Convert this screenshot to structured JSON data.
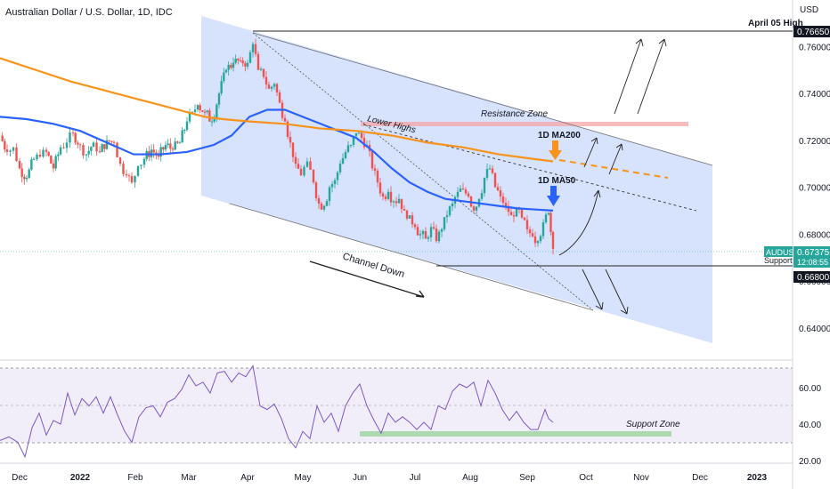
{
  "header": {
    "title": "Australian Dollar / U.S. Dollar, 1D, IDC"
  },
  "axis": {
    "currency": "USD"
  },
  "chart_data": {
    "type": "candlestick",
    "symbol": "AUDUSD",
    "timeframe": "1D",
    "source": "IDC",
    "x_ticks": [
      "Dec",
      "2022",
      "Feb",
      "Mar",
      "Apr",
      "May",
      "Jun",
      "Jul",
      "Aug",
      "Sep",
      "Oct",
      "Nov",
      "Dec",
      "2023"
    ],
    "y_ticks": [
      "0.76000",
      "0.74000",
      "0.72000",
      "0.70000",
      "0.68000",
      "0.66000",
      "0.64000"
    ],
    "y_tick_values": [
      0.76,
      0.74,
      0.72,
      0.7,
      0.68,
      0.66,
      0.64
    ],
    "ylim": [
      0.627,
      0.781
    ],
    "rsi_ticks": [
      "60.00",
      "40.00",
      "20.00"
    ],
    "rsi_tick_values": [
      60,
      40,
      20
    ],
    "rsi_lim": [
      17,
      75
    ],
    "close_path": [
      [
        0,
        0.722
      ],
      [
        8,
        0.715
      ],
      [
        15,
        0.717
      ],
      [
        22,
        0.708
      ],
      [
        30,
        0.704
      ],
      [
        38,
        0.712
      ],
      [
        45,
        0.713
      ],
      [
        52,
        0.715
      ],
      [
        60,
        0.708
      ],
      [
        68,
        0.717
      ],
      [
        75,
        0.719
      ],
      [
        82,
        0.723
      ],
      [
        90,
        0.718
      ],
      [
        97,
        0.714
      ],
      [
        105,
        0.719
      ],
      [
        112,
        0.715
      ],
      [
        120,
        0.72
      ],
      [
        128,
        0.719
      ],
      [
        135,
        0.71
      ],
      [
        142,
        0.705
      ],
      [
        148,
        0.702
      ],
      [
        155,
        0.709
      ],
      [
        162,
        0.712
      ],
      [
        170,
        0.716
      ],
      [
        178,
        0.713
      ],
      [
        186,
        0.718
      ],
      [
        194,
        0.716
      ],
      [
        202,
        0.719
      ],
      [
        210,
        0.728
      ],
      [
        216,
        0.732
      ],
      [
        222,
        0.735
      ],
      [
        230,
        0.732
      ],
      [
        238,
        0.728
      ],
      [
        246,
        0.74
      ],
      [
        254,
        0.75
      ],
      [
        262,
        0.753
      ],
      [
        270,
        0.754
      ],
      [
        278,
        0.753
      ],
      [
        284,
        0.761
      ],
      [
        290,
        0.75
      ],
      [
        296,
        0.747
      ],
      [
        302,
        0.742
      ],
      [
        308,
        0.744
      ],
      [
        314,
        0.736
      ],
      [
        320,
        0.728
      ],
      [
        326,
        0.719
      ],
      [
        332,
        0.71
      ],
      [
        338,
        0.705
      ],
      [
        345,
        0.711
      ],
      [
        352,
        0.702
      ],
      [
        358,
        0.693
      ],
      [
        364,
        0.692
      ],
      [
        370,
        0.7
      ],
      [
        376,
        0.703
      ],
      [
        382,
        0.71
      ],
      [
        388,
        0.715
      ],
      [
        394,
        0.718
      ],
      [
        400,
        0.723
      ],
      [
        406,
        0.721
      ],
      [
        412,
        0.718
      ],
      [
        418,
        0.708
      ],
      [
        424,
        0.702
      ],
      [
        430,
        0.696
      ],
      [
        436,
        0.698
      ],
      [
        442,
        0.694
      ],
      [
        448,
        0.695
      ],
      [
        454,
        0.69
      ],
      [
        460,
        0.688
      ],
      [
        466,
        0.683
      ],
      [
        472,
        0.68
      ],
      [
        478,
        0.678
      ],
      [
        484,
        0.683
      ],
      [
        490,
        0.677
      ],
      [
        496,
        0.682
      ],
      [
        502,
        0.688
      ],
      [
        508,
        0.693
      ],
      [
        514,
        0.698
      ],
      [
        520,
        0.699
      ],
      [
        526,
        0.696
      ],
      [
        532,
        0.69
      ],
      [
        538,
        0.695
      ],
      [
        544,
        0.704
      ],
      [
        550,
        0.708
      ],
      [
        556,
        0.7
      ],
      [
        562,
        0.696
      ],
      [
        568,
        0.692
      ],
      [
        574,
        0.688
      ],
      [
        580,
        0.691
      ],
      [
        586,
        0.687
      ],
      [
        592,
        0.682
      ],
      [
        598,
        0.679
      ],
      [
        604,
        0.677
      ],
      [
        610,
        0.685
      ],
      [
        616,
        0.689
      ],
      [
        621,
        0.6737
      ]
    ],
    "series": [
      {
        "name": "1D MA50",
        "color": "#2962ff",
        "points": [
          [
            0,
            0.73
          ],
          [
            30,
            0.729
          ],
          [
            60,
            0.727
          ],
          [
            90,
            0.724
          ],
          [
            120,
            0.719
          ],
          [
            150,
            0.714
          ],
          [
            180,
            0.714
          ],
          [
            210,
            0.715
          ],
          [
            240,
            0.718
          ],
          [
            260,
            0.722
          ],
          [
            280,
            0.73
          ],
          [
            300,
            0.733
          ],
          [
            320,
            0.733
          ],
          [
            340,
            0.73
          ],
          [
            360,
            0.727
          ],
          [
            380,
            0.724
          ],
          [
            400,
            0.721
          ],
          [
            420,
            0.715
          ],
          [
            440,
            0.708
          ],
          [
            460,
            0.702
          ],
          [
            480,
            0.698
          ],
          [
            500,
            0.695
          ],
          [
            520,
            0.694
          ],
          [
            540,
            0.693
          ],
          [
            560,
            0.692
          ],
          [
            580,
            0.691
          ],
          [
            600,
            0.6905
          ],
          [
            621,
            0.69
          ]
        ]
      },
      {
        "name": "1D MA200",
        "color": "#f7931a",
        "points": [
          [
            0,
            0.755
          ],
          [
            40,
            0.75
          ],
          [
            80,
            0.745
          ],
          [
            120,
            0.741
          ],
          [
            160,
            0.737
          ],
          [
            200,
            0.733
          ],
          [
            230,
            0.73
          ],
          [
            250,
            0.729
          ],
          [
            280,
            0.728
          ],
          [
            320,
            0.727
          ],
          [
            360,
            0.725
          ],
          [
            400,
            0.724
          ],
          [
            440,
            0.722
          ],
          [
            480,
            0.719
          ],
          [
            520,
            0.717
          ],
          [
            560,
            0.714
          ],
          [
            600,
            0.712
          ],
          [
            621,
            0.711
          ]
        ]
      },
      {
        "name": "RSI",
        "color": "#7e57c2",
        "points": [
          [
            0,
            31
          ],
          [
            10,
            33
          ],
          [
            20,
            30
          ],
          [
            28,
            22
          ],
          [
            36,
            38
          ],
          [
            44,
            46
          ],
          [
            52,
            34
          ],
          [
            60,
            42
          ],
          [
            68,
            40
          ],
          [
            76,
            57
          ],
          [
            84,
            45
          ],
          [
            92,
            54
          ],
          [
            100,
            50
          ],
          [
            108,
            55
          ],
          [
            116,
            46
          ],
          [
            124,
            55
          ],
          [
            132,
            45
          ],
          [
            140,
            36
          ],
          [
            148,
            30
          ],
          [
            156,
            44
          ],
          [
            164,
            49
          ],
          [
            172,
            50
          ],
          [
            180,
            44
          ],
          [
            188,
            52
          ],
          [
            196,
            54
          ],
          [
            204,
            59
          ],
          [
            212,
            67
          ],
          [
            220,
            61
          ],
          [
            228,
            63
          ],
          [
            236,
            57
          ],
          [
            244,
            68
          ],
          [
            252,
            69
          ],
          [
            260,
            63
          ],
          [
            268,
            68
          ],
          [
            276,
            66
          ],
          [
            284,
            72
          ],
          [
            292,
            50
          ],
          [
            300,
            48
          ],
          [
            308,
            51
          ],
          [
            316,
            43
          ],
          [
            324,
            32
          ],
          [
            332,
            27
          ],
          [
            340,
            36
          ],
          [
            348,
            32
          ],
          [
            356,
            50
          ],
          [
            364,
            41
          ],
          [
            372,
            46
          ],
          [
            380,
            36
          ],
          [
            388,
            50
          ],
          [
            396,
            57
          ],
          [
            404,
            62
          ],
          [
            412,
            50
          ],
          [
            420,
            42
          ],
          [
            428,
            35
          ],
          [
            436,
            46
          ],
          [
            444,
            41
          ],
          [
            452,
            44
          ],
          [
            460,
            41
          ],
          [
            468,
            37
          ],
          [
            476,
            41
          ],
          [
            484,
            37
          ],
          [
            492,
            50
          ],
          [
            500,
            48
          ],
          [
            508,
            58
          ],
          [
            516,
            62
          ],
          [
            524,
            60
          ],
          [
            532,
            63
          ],
          [
            540,
            50
          ],
          [
            548,
            64
          ],
          [
            556,
            57
          ],
          [
            564,
            48
          ],
          [
            572,
            42
          ],
          [
            580,
            47
          ],
          [
            588,
            41
          ],
          [
            596,
            37
          ],
          [
            604,
            37
          ],
          [
            612,
            48
          ],
          [
            616,
            43
          ],
          [
            621,
            41
          ]
        ]
      }
    ],
    "annotations": {
      "resistance_zone": "Resistance Zone",
      "support_zone": "Support Zone",
      "lower_highs": "Lower Highs",
      "channel_down": "Channel Down",
      "ma200_label": "1D MA200",
      "ma50_label": "1D MA50",
      "april_high": "April 05 High"
    },
    "price_levels": {
      "april_high_value": "0.76650",
      "current_value": "0.67375",
      "current_symbol": "AUDUSD",
      "countdown": "12:08:55",
      "support_value": "0.66800",
      "support_label_partial": "Support"
    }
  }
}
